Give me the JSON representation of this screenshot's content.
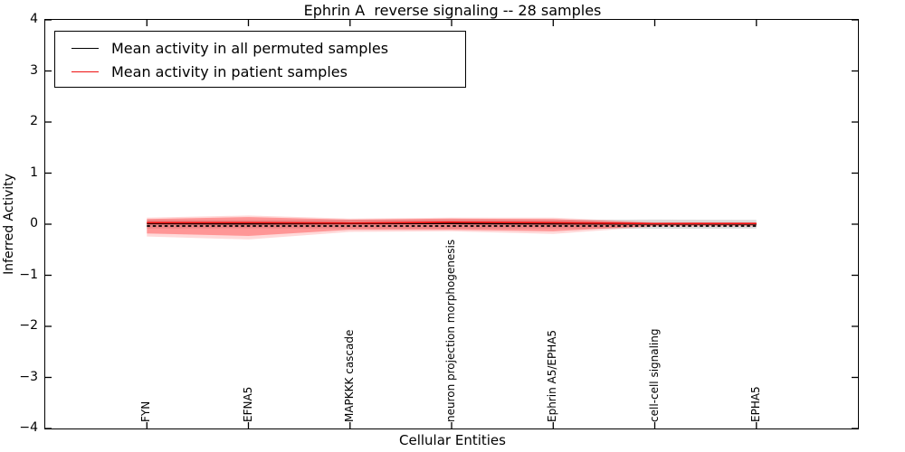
{
  "title": "Ephrin A  reverse signaling -- 28 samples",
  "axes": {
    "ylabel": "Inferred Activity",
    "xlabel": "Cellular Entities",
    "ytick_labels": [
      "4",
      "3",
      "2",
      "1",
      "0",
      "−1",
      "−2",
      "−3",
      "−4"
    ],
    "ytick_values": [
      4,
      3,
      2,
      1,
      0,
      -1,
      -2,
      -3,
      -4
    ]
  },
  "legend": {
    "position": "upper-left",
    "items": [
      {
        "label": "Mean activity in all permuted samples",
        "color": "#000000"
      },
      {
        "label": "Mean activity in patient samples",
        "color": "#ee1111"
      }
    ]
  },
  "chart_data": {
    "type": "line",
    "title": "Ephrin A  reverse signaling -- 28 samples",
    "xlabel": "Cellular Entities",
    "ylabel": "Inferred Activity",
    "ylim": [
      -4,
      4
    ],
    "grid": false,
    "categories": [
      "FYN",
      "EFNA5",
      "MAPKKK cascade",
      "neuron projection morphogenesis",
      "Ephrin A5/EPHA5",
      "cell-cell signaling",
      "EPHA5"
    ],
    "series": [
      {
        "name": "Mean activity in all permuted samples",
        "color": "#000000",
        "style": "solid",
        "values": [
          0.012,
          0.008,
          0.012,
          0.014,
          0.008,
          0.004,
          0.004
        ]
      },
      {
        "name": "Mean activity in patient samples",
        "color": "#ee1111",
        "style": "solid",
        "values": [
          0.028,
          0.03,
          0.022,
          0.038,
          0.028,
          0.012,
          0.014
        ]
      },
      {
        "name": "zero-baseline-dashed",
        "color": "#000000",
        "style": "dashed",
        "values": [
          -0.035,
          -0.035,
          -0.035,
          -0.035,
          -0.035,
          -0.035,
          -0.035
        ]
      }
    ],
    "bands": [
      {
        "name": "permuted-std-band",
        "color": "rgba(130,130,130,0.28)",
        "upper": [
          0.085,
          0.08,
          0.085,
          0.09,
          0.085,
          0.09,
          0.085
        ],
        "lower": [
          -0.085,
          -0.08,
          -0.085,
          -0.09,
          -0.085,
          -0.09,
          -0.085
        ]
      },
      {
        "name": "patient-std-halo",
        "color": "rgba(255,70,70,0.20)",
        "upper": [
          0.13,
          0.17,
          0.11,
          0.13,
          0.13,
          0.04,
          0.035
        ],
        "lower": [
          -0.24,
          -0.3,
          -0.15,
          -0.14,
          -0.19,
          -0.05,
          -0.04
        ]
      },
      {
        "name": "patient-std-band",
        "color": "rgba(255,40,40,0.38)",
        "upper": [
          0.1,
          0.14,
          0.09,
          0.11,
          0.1,
          0.025,
          0.025
        ],
        "lower": [
          -0.18,
          -0.23,
          -0.11,
          -0.11,
          -0.14,
          -0.03,
          -0.03
        ]
      }
    ]
  }
}
